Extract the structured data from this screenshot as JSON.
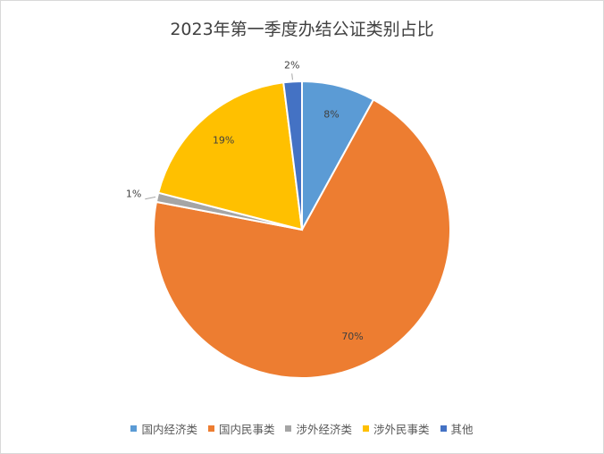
{
  "chart_data": {
    "type": "pie",
    "title": "2023年第一季度办结公证类别占比",
    "categories": [
      "国内经济类",
      "国内民事类",
      "涉外经济类",
      "涉外民事类",
      "其他"
    ],
    "values": [
      8,
      70,
      1,
      19,
      2
    ],
    "labels": [
      "8%",
      "70%",
      "1%",
      "19%",
      "2%"
    ],
    "colors": [
      "#5b9bd5",
      "#ed7d31",
      "#a5a5a5",
      "#ffc000",
      "#4472c4"
    ],
    "legend_position": "bottom"
  }
}
